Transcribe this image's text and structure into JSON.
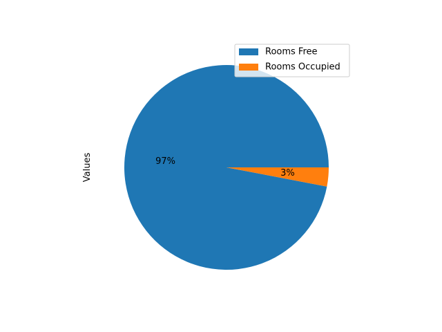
{
  "chart_data": {
    "type": "pie",
    "ylabel": "Values",
    "labels": [
      "Rooms Free",
      "Rooms Occupied"
    ],
    "values": [
      97,
      3
    ],
    "pct_labels": [
      "97%",
      "3%"
    ],
    "colors": [
      "#1f77b4",
      "#ff7f0e"
    ],
    "start_angle_deg": 0,
    "direction": "counterclockwise",
    "legend_location": "upper right"
  }
}
